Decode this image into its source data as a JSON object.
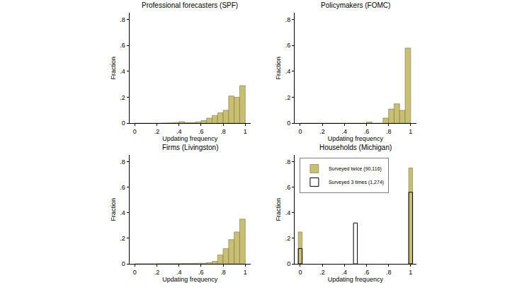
{
  "chart_data": [
    {
      "type": "histogram",
      "title": "Professional forecasters (SPF)",
      "x_label": "Updating frequency",
      "y_label": "Fraction",
      "color": "#c9bf72",
      "bins": [
        0,
        0.05,
        0.1,
        0.15,
        0.2,
        0.25,
        0.3,
        0.35,
        0.4,
        0.45,
        0.5,
        0.55,
        0.6,
        0.65,
        0.7,
        0.75,
        0.8,
        0.85,
        0.9,
        0.95,
        1
      ],
      "values": [
        0,
        0,
        0,
        0,
        0,
        0.002,
        0.003,
        0.005,
        0.012,
        0.005,
        0.005,
        0.01,
        0.02,
        0.04,
        0.06,
        0.08,
        0.1,
        0.21,
        0.2,
        0.29
      ],
      "xlim": [
        -0.05,
        1.05
      ],
      "ylim": [
        0,
        0.85
      ],
      "xticks": [
        0,
        {
          "value": 0.2,
          "label": ".2"
        },
        {
          "value": 0.4,
          "label": ".4"
        },
        {
          "value": 0.6,
          "label": ".6"
        },
        {
          "value": 0.8,
          "label": ".8"
        },
        1
      ],
      "yticks": [
        0,
        {
          "value": 0.2,
          "label": ".2"
        },
        {
          "value": 0.4,
          "label": ".4"
        },
        {
          "value": 0.6,
          "label": ".6"
        },
        {
          "value": 0.8,
          "label": ".8"
        }
      ]
    },
    {
      "type": "histogram",
      "title": "Policymakers (FOMC)",
      "x_label": "Updating frequency",
      "y_label": "Fraction",
      "color": "#c9bf72",
      "bins": [
        0,
        0.05,
        0.1,
        0.15,
        0.2,
        0.25,
        0.3,
        0.35,
        0.4,
        0.45,
        0.5,
        0.55,
        0.6,
        0.65,
        0.7,
        0.75,
        0.8,
        0.85,
        0.9,
        0.95,
        1
      ],
      "values": [
        0,
        0,
        0,
        0,
        0,
        0,
        0,
        0,
        0,
        0,
        0,
        0,
        0.01,
        0,
        0,
        0.04,
        0.11,
        0.15,
        0.1,
        0.58
      ],
      "xlim": [
        -0.05,
        1.05
      ],
      "ylim": [
        0,
        0.85
      ],
      "xticks": [
        0,
        {
          "value": 0.2,
          "label": ".2"
        },
        {
          "value": 0.4,
          "label": ".4"
        },
        {
          "value": 0.6,
          "label": ".6"
        },
        {
          "value": 0.8,
          "label": ".8"
        },
        1
      ],
      "yticks": [
        0,
        {
          "value": 0.2,
          "label": ".2"
        },
        {
          "value": 0.4,
          "label": ".4"
        },
        {
          "value": 0.6,
          "label": ".6"
        },
        {
          "value": 0.8,
          "label": ".8"
        }
      ]
    },
    {
      "type": "histogram",
      "title": "Firms (Livingston)",
      "x_label": "Updating frequency",
      "y_label": "Fraction",
      "color": "#c9bf72",
      "bins": [
        0,
        0.05,
        0.1,
        0.15,
        0.2,
        0.25,
        0.3,
        0.35,
        0.4,
        0.45,
        0.5,
        0.55,
        0.6,
        0.65,
        0.7,
        0.75,
        0.8,
        0.85,
        0.9,
        0.95,
        1
      ],
      "values": [
        0,
        0,
        0,
        0,
        0.002,
        0.002,
        0.002,
        0.002,
        0.003,
        0.003,
        0.003,
        0.005,
        0.005,
        0.01,
        0.02,
        0.07,
        0.12,
        0.19,
        0.25,
        0.35
      ],
      "xlim": [
        -0.05,
        1.05
      ],
      "ylim": [
        0,
        0.85
      ],
      "xticks": [
        0,
        {
          "value": 0.2,
          "label": ".2"
        },
        {
          "value": 0.4,
          "label": ".4"
        },
        {
          "value": 0.6,
          "label": ".6"
        },
        {
          "value": 0.8,
          "label": ".8"
        },
        1
      ],
      "yticks": [
        0,
        {
          "value": 0.2,
          "label": ".2"
        },
        {
          "value": 0.4,
          "label": ".4"
        },
        {
          "value": 0.6,
          "label": ".6"
        },
        {
          "value": 0.8,
          "label": ".8"
        }
      ]
    },
    {
      "type": "bar",
      "title": "Households (Michigan)",
      "x_label": "Updating frequency",
      "y_label": "Fraction",
      "legend": "upper left",
      "x": [
        0,
        0.5,
        1
      ],
      "series": [
        {
          "name": "Surveyed twice (90,116)",
          "color": "#c9bf72",
          "marker": "filled",
          "values": [
            0.25,
            null,
            0.75
          ]
        },
        {
          "name": "Surveyed 3 times (1,274)",
          "color": "#000000",
          "marker": "hollow",
          "values": [
            0.12,
            0.32,
            0.56
          ]
        }
      ],
      "xlim": [
        -0.05,
        1.05
      ],
      "ylim": [
        0,
        0.85
      ],
      "xticks": [
        0,
        {
          "value": 0.2,
          "label": ".2"
        },
        {
          "value": 0.4,
          "label": ".4"
        },
        {
          "value": 0.6,
          "label": ".6"
        },
        {
          "value": 0.8,
          "label": ".8"
        },
        1
      ],
      "yticks": [
        0,
        {
          "value": 0.2,
          "label": ".2"
        },
        {
          "value": 0.4,
          "label": ".4"
        },
        {
          "value": 0.6,
          "label": ".6"
        },
        {
          "value": 0.8,
          "label": ".8"
        }
      ]
    }
  ]
}
